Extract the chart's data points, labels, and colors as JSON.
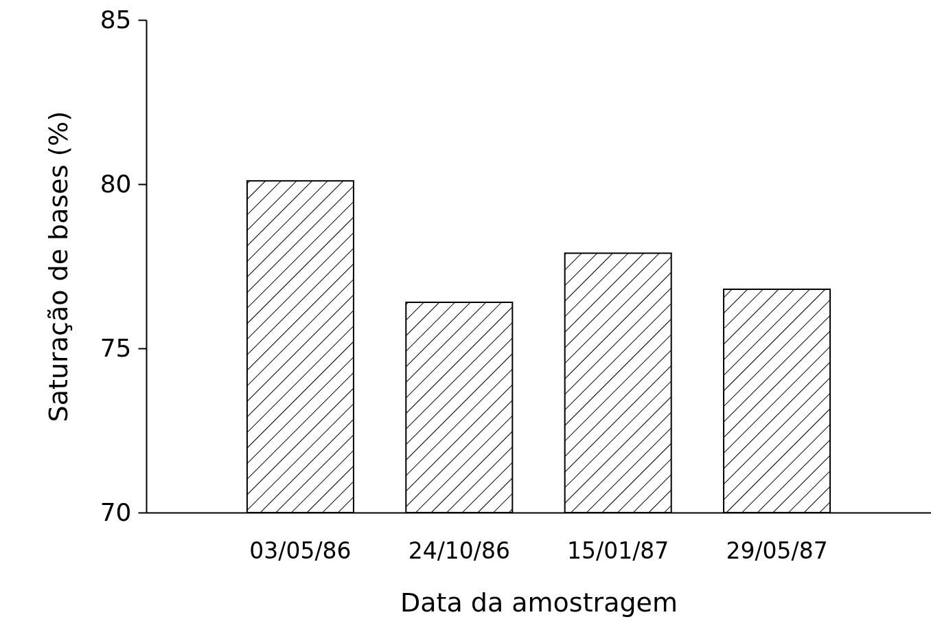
{
  "chart_data": {
    "type": "bar",
    "xlabel": "Data da amostragem",
    "ylabel": "Saturação de bases (%)",
    "categories": [
      "03/05/86",
      "24/10/86",
      "15/01/87",
      "29/05/87"
    ],
    "values": [
      80.1,
      76.4,
      77.9,
      76.8
    ],
    "color": "#000000",
    "ylim": [
      70,
      85
    ],
    "yticks": [
      70,
      75,
      80,
      85
    ],
    "grid": false,
    "legend": false
  }
}
